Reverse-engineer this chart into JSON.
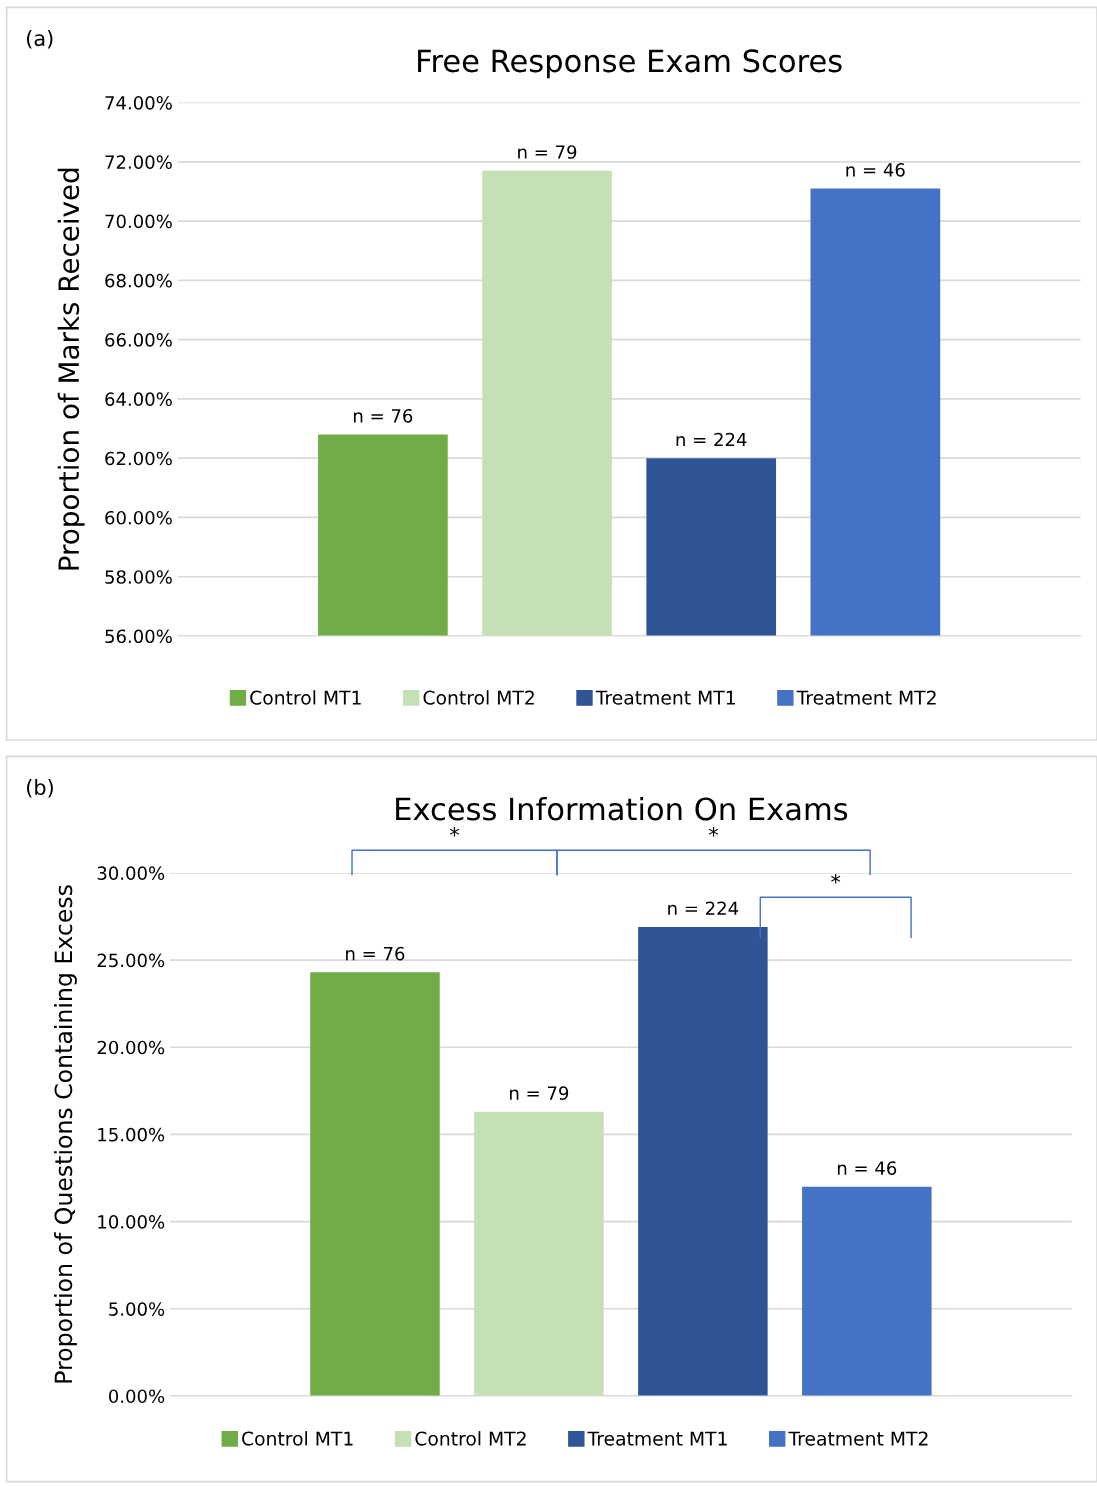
{
  "chart_data": [
    {
      "type": "bar",
      "title": "Free Response Exam Scores",
      "ylabel": "Proportion of Marks Received",
      "categories": [
        null,
        null,
        null,
        null
      ],
      "series": [
        {
          "name": "Control MT1",
          "color": "#70ad47",
          "values": [
            62.8,
            null,
            null,
            null
          ]
        },
        {
          "name": "Control MT2",
          "color": "#c5e0b4",
          "values": [
            null,
            71.7,
            null,
            null
          ]
        },
        {
          "name": "Treatment MT1",
          "color": "#2f5597",
          "values": [
            null,
            null,
            62.0,
            null
          ]
        },
        {
          "name": "Treatment MT2",
          "color": "#4472c4",
          "values": [
            null,
            null,
            null,
            71.1
          ]
        }
      ],
      "ylim": [
        56,
        74
      ],
      "yticks": [
        {
          "value": 56,
          "label": "56.00%"
        },
        {
          "value": 58,
          "label": "58.00%"
        },
        {
          "value": 60,
          "label": "60.00%"
        },
        {
          "value": 62,
          "label": "62.00%"
        },
        {
          "value": 64,
          "label": "64.00%"
        },
        {
          "value": 66,
          "label": "66.00%"
        },
        {
          "value": 68,
          "label": "68.00%"
        },
        {
          "value": 70,
          "label": "70.00%"
        },
        {
          "value": 72,
          "label": "72.00%"
        },
        {
          "value": 74,
          "label": "74.00%"
        }
      ],
      "grid": "y",
      "legend": "bottom",
      "annotations": [
        "(a)",
        {
          "text": "n = 76",
          "y": 62.8
        },
        {
          "text": "n = 79",
          "y": 71.7
        },
        {
          "text": "n = 224",
          "y": 62.0
        },
        {
          "text": "n = 46",
          "y": 71.1
        }
      ]
    },
    {
      "type": "bar",
      "title": "Excess Information On Exams",
      "ylabel": "Proportion of Questions Containing Excess",
      "categories": [
        null,
        null,
        null,
        null
      ],
      "series": [
        {
          "name": "Control MT1",
          "color": "#70ad47",
          "values": [
            24.3,
            null,
            null,
            null
          ]
        },
        {
          "name": "Control MT2",
          "color": "#c5e0b4",
          "values": [
            null,
            16.3,
            null,
            null
          ]
        },
        {
          "name": "Treatment MT1",
          "color": "#2f5597",
          "values": [
            null,
            null,
            26.9,
            null
          ]
        },
        {
          "name": "Treatment MT2",
          "color": "#4472c4",
          "values": [
            null,
            null,
            null,
            12.0
          ]
        }
      ],
      "ylim": [
        0,
        30
      ],
      "yticks": [
        {
          "value": 0,
          "label": "0.00%"
        },
        {
          "value": 5,
          "label": "5.00%"
        },
        {
          "value": 10,
          "label": "10.00%"
        },
        {
          "value": 15,
          "label": "15.00%"
        },
        {
          "value": 20,
          "label": "20.00%"
        },
        {
          "value": 25,
          "label": "25.00%"
        },
        {
          "value": 30,
          "label": "30.00%"
        }
      ],
      "grid": "y",
      "legend": "bottom",
      "annotations": [
        "(b)",
        {
          "text": "n = 76",
          "y": 24.3
        },
        {
          "text": "n = 79",
          "y": 16.3
        },
        {
          "text": "n = 224",
          "y": 26.9
        },
        {
          "text": "n = 46",
          "y": 12.0
        },
        "*",
        "*",
        "*"
      ]
    }
  ]
}
